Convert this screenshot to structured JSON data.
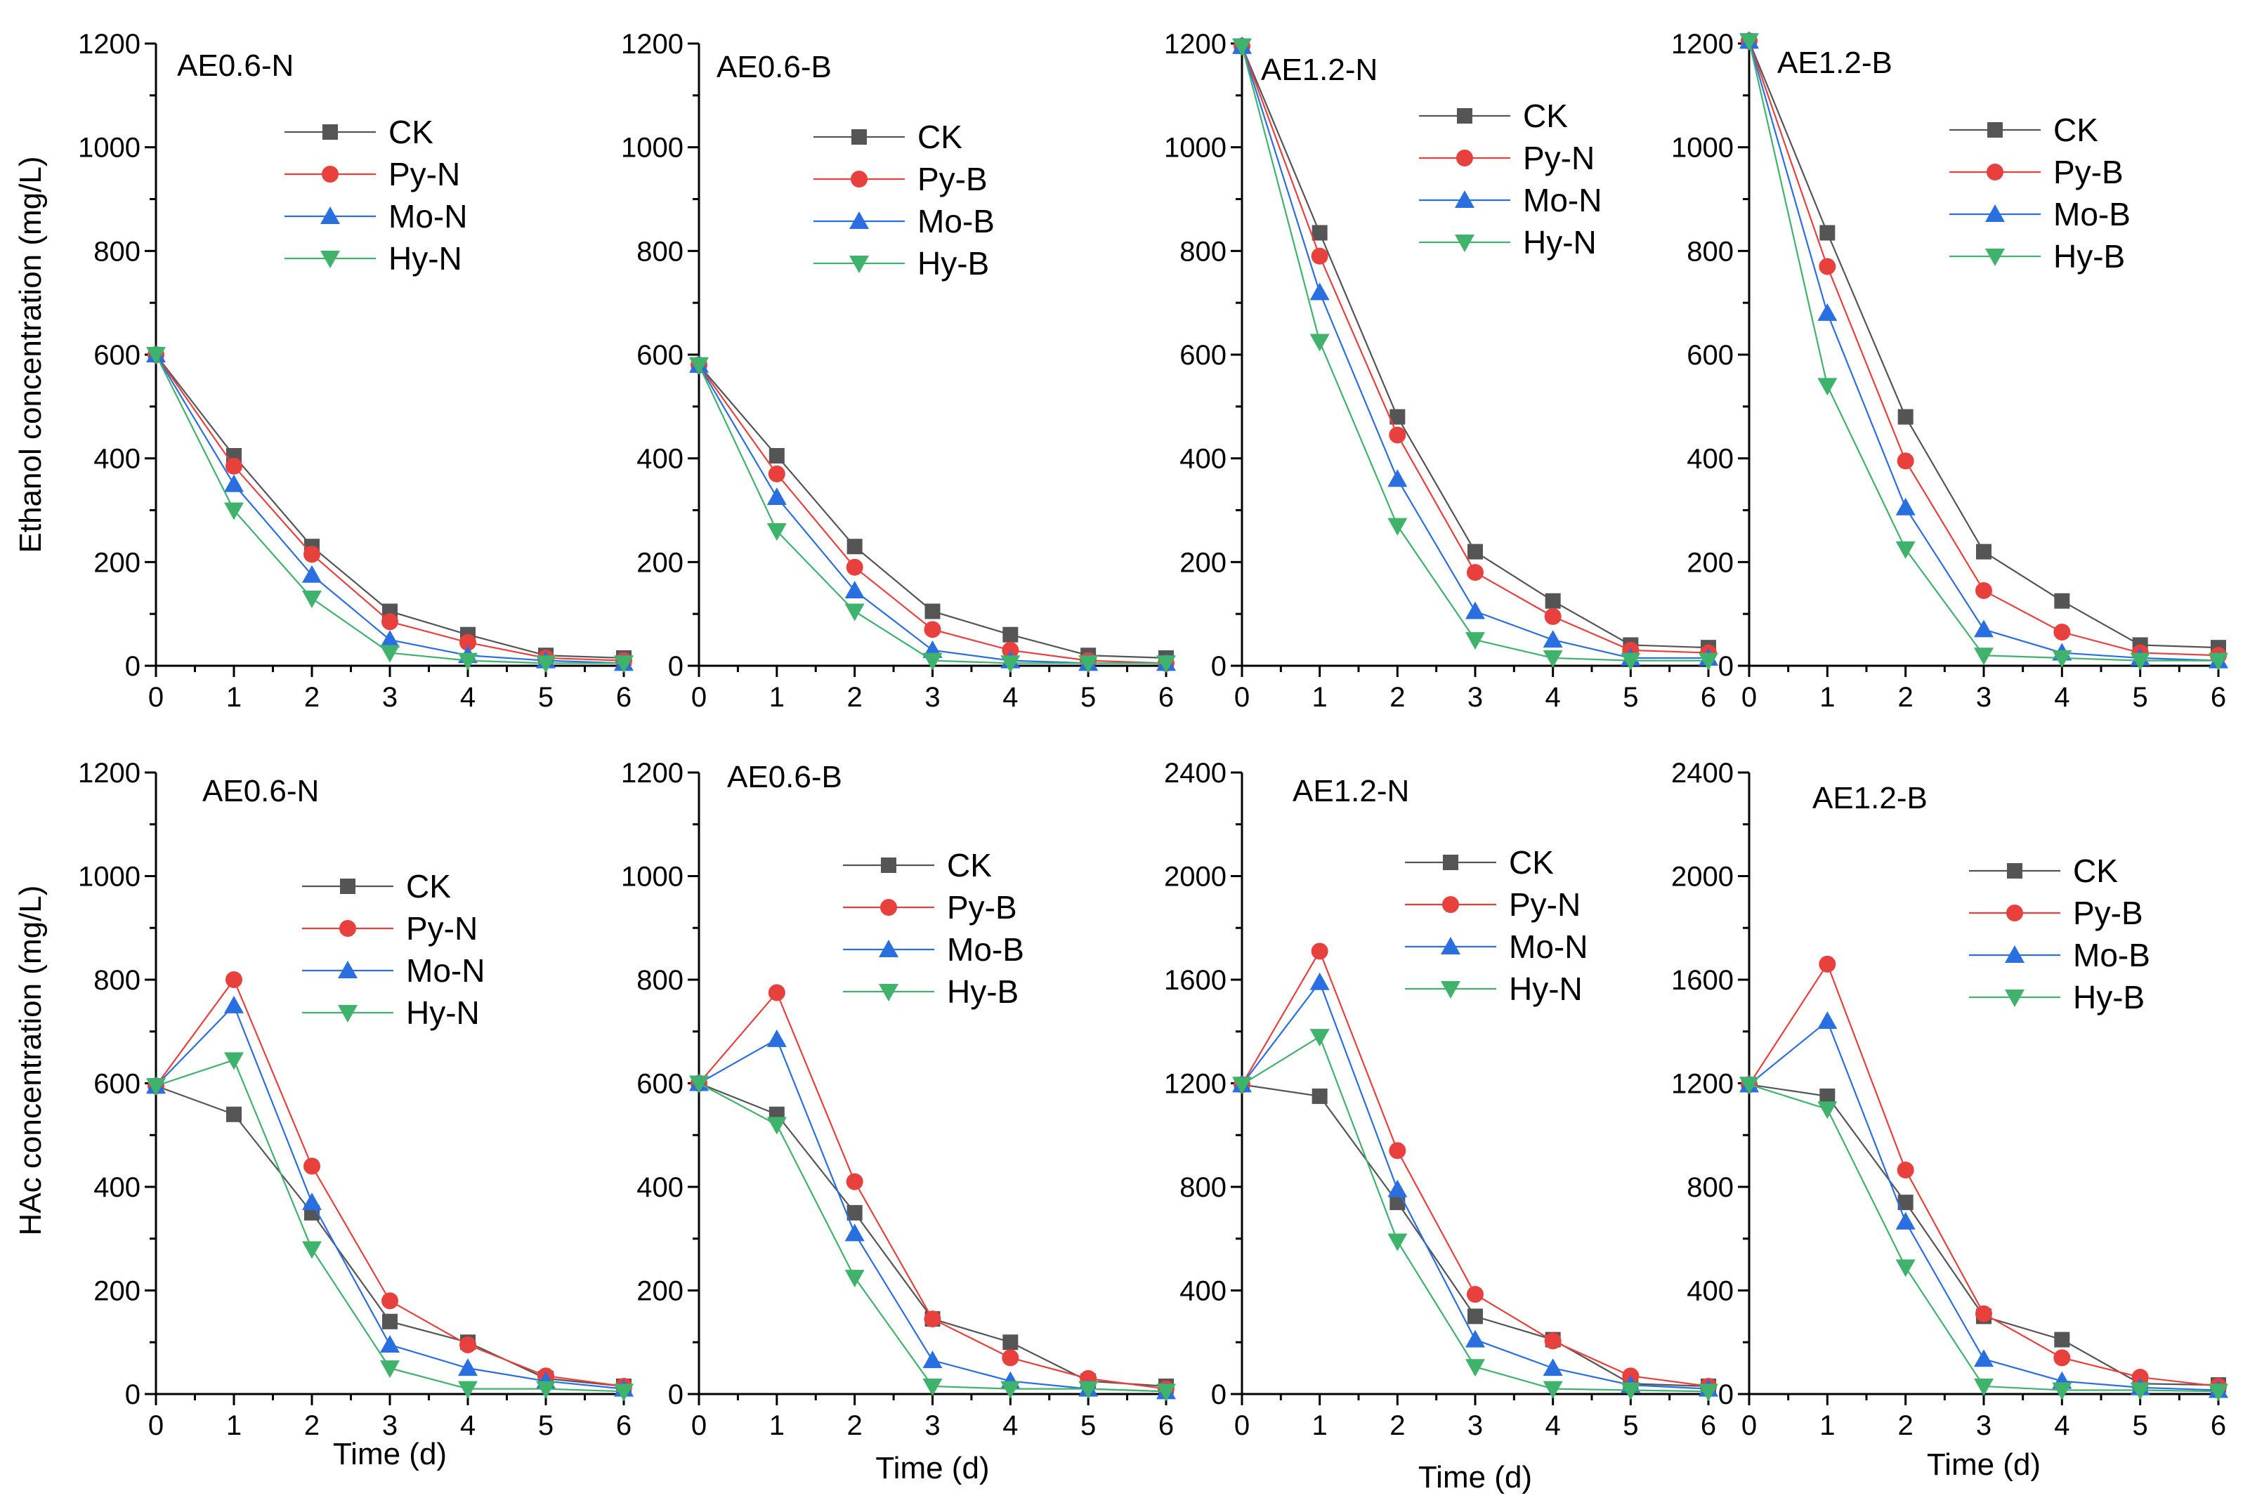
{
  "colors": {
    "CK": "#555555",
    "Py": "#e8413d",
    "Mo": "#2a6fe0",
    "Hy": "#3fb36c"
  },
  "row_labels": {
    "top_ylabel": "Ethanol concentration (mg/L)",
    "bottom_ylabel": "HAc concentration (mg/L)"
  },
  "chart_data": [
    {
      "type": "line",
      "row": 0,
      "col": 0,
      "title": "AE0.6-N",
      "xlabel": "",
      "ylabel": "Ethanol concentration (mg/L)",
      "xlim": [
        0,
        6
      ],
      "ylim": [
        0,
        1200
      ],
      "xticks": [
        "0",
        "1",
        "2",
        "3",
        "4",
        "5",
        "6"
      ],
      "yticks": [
        "0",
        "200",
        "400",
        "600",
        "800",
        "1000",
        "1200"
      ],
      "legend": "upper-right",
      "x": [
        0,
        1,
        2,
        3,
        4,
        5,
        6
      ],
      "series": [
        {
          "name": "CK",
          "marker": "square",
          "values": [
            600,
            405,
            230,
            105,
            60,
            20,
            15
          ]
        },
        {
          "name": "Py-N",
          "marker": "circle",
          "values": [
            600,
            385,
            215,
            85,
            45,
            15,
            10
          ]
        },
        {
          "name": "Mo-N",
          "marker": "triangle-up",
          "values": [
            600,
            350,
            175,
            50,
            20,
            10,
            5
          ]
        },
        {
          "name": "Hy-N",
          "marker": "triangle-down",
          "values": [
            600,
            300,
            130,
            25,
            10,
            5,
            5
          ]
        }
      ]
    },
    {
      "type": "line",
      "row": 0,
      "col": 1,
      "title": "AE0.6-B",
      "xlabel": "",
      "ylabel": "",
      "xlim": [
        0,
        6
      ],
      "ylim": [
        0,
        1200
      ],
      "xticks": [
        "0",
        "1",
        "2",
        "3",
        "4",
        "5",
        "6"
      ],
      "yticks": [
        "0",
        "200",
        "400",
        "600",
        "800",
        "1000",
        "1200"
      ],
      "legend": "upper-right",
      "x": [
        0,
        1,
        2,
        3,
        4,
        5,
        6
      ],
      "series": [
        {
          "name": "CK",
          "marker": "square",
          "values": [
            580,
            405,
            230,
            105,
            60,
            20,
            15
          ]
        },
        {
          "name": "Py-B",
          "marker": "circle",
          "values": [
            580,
            370,
            190,
            70,
            30,
            10,
            5
          ]
        },
        {
          "name": "Mo-B",
          "marker": "triangle-up",
          "values": [
            580,
            325,
            145,
            30,
            10,
            5,
            5
          ]
        },
        {
          "name": "Hy-B",
          "marker": "triangle-down",
          "values": [
            580,
            260,
            105,
            10,
            5,
            5,
            5
          ]
        }
      ]
    },
    {
      "type": "line",
      "row": 0,
      "col": 2,
      "title": "AE1.2-N",
      "xlabel": "",
      "ylabel": "",
      "xlim": [
        0,
        6
      ],
      "ylim": [
        0,
        1200
      ],
      "xticks": [
        "0",
        "1",
        "2",
        "3",
        "4",
        "5",
        "6"
      ],
      "yticks": [
        "0",
        "200",
        "400",
        "600",
        "800",
        "1000",
        "1200"
      ],
      "legend": "upper-right",
      "x": [
        0,
        1,
        2,
        3,
        4,
        5,
        6
      ],
      "series": [
        {
          "name": "CK",
          "marker": "square",
          "values": [
            1195,
            835,
            480,
            220,
            125,
            40,
            35
          ]
        },
        {
          "name": "Py-N",
          "marker": "circle",
          "values": [
            1195,
            790,
            445,
            180,
            95,
            30,
            25
          ]
        },
        {
          "name": "Mo-N",
          "marker": "triangle-up",
          "values": [
            1195,
            720,
            360,
            105,
            50,
            15,
            15
          ]
        },
        {
          "name": "Hy-N",
          "marker": "triangle-down",
          "values": [
            1195,
            625,
            270,
            50,
            15,
            10,
            10
          ]
        }
      ]
    },
    {
      "type": "line",
      "row": 0,
      "col": 3,
      "title": "AE1.2-B",
      "xlabel": "",
      "ylabel": "",
      "xlim": [
        0,
        6
      ],
      "ylim": [
        0,
        1200
      ],
      "xticks": [
        "0",
        "1",
        "2",
        "3",
        "4",
        "5",
        "6"
      ],
      "yticks": [
        "0",
        "200",
        "400",
        "600",
        "800",
        "1000",
        "1200"
      ],
      "legend": "upper-right",
      "x": [
        0,
        1,
        2,
        3,
        4,
        5,
        6
      ],
      "series": [
        {
          "name": "CK",
          "marker": "square",
          "values": [
            1205,
            835,
            480,
            220,
            125,
            40,
            35
          ]
        },
        {
          "name": "Py-B",
          "marker": "circle",
          "values": [
            1205,
            770,
            395,
            145,
            65,
            25,
            20
          ]
        },
        {
          "name": "Mo-B",
          "marker": "triangle-up",
          "values": [
            1205,
            680,
            305,
            70,
            25,
            15,
            10
          ]
        },
        {
          "name": "Hy-B",
          "marker": "triangle-down",
          "values": [
            1205,
            540,
            225,
            20,
            15,
            10,
            10
          ]
        }
      ]
    },
    {
      "type": "line",
      "row": 1,
      "col": 0,
      "title": "AE0.6-N",
      "xlabel": "Time (d)",
      "ylabel": "HAc concentration (mg/L)",
      "xlim": [
        0,
        6
      ],
      "ylim": [
        0,
        1200
      ],
      "xticks": [
        "0",
        "1",
        "2",
        "3",
        "4",
        "5",
        "6"
      ],
      "yticks": [
        "0",
        "200",
        "400",
        "600",
        "800",
        "1000",
        "1200"
      ],
      "legend": "upper-right",
      "x": [
        0,
        1,
        2,
        3,
        4,
        5,
        6
      ],
      "series": [
        {
          "name": "CK",
          "marker": "square",
          "values": [
            595,
            540,
            350,
            140,
            100,
            30,
            15
          ]
        },
        {
          "name": "Py-N",
          "marker": "circle",
          "values": [
            595,
            800,
            440,
            180,
            95,
            35,
            15
          ]
        },
        {
          "name": "Mo-N",
          "marker": "triangle-up",
          "values": [
            595,
            750,
            370,
            95,
            50,
            25,
            10
          ]
        },
        {
          "name": "Hy-N",
          "marker": "triangle-down",
          "values": [
            595,
            645,
            280,
            50,
            10,
            10,
            5
          ]
        }
      ]
    },
    {
      "type": "line",
      "row": 1,
      "col": 1,
      "title": "AE0.6-B",
      "xlabel": "Time (d)",
      "ylabel": "",
      "xlim": [
        0,
        6
      ],
      "ylim": [
        0,
        1200
      ],
      "xticks": [
        "0",
        "1",
        "2",
        "3",
        "4",
        "5",
        "6"
      ],
      "yticks": [
        "0",
        "200",
        "400",
        "600",
        "800",
        "1000",
        "1200"
      ],
      "legend": "upper-right",
      "x": [
        0,
        1,
        2,
        3,
        4,
        5,
        6
      ],
      "series": [
        {
          "name": "CK",
          "marker": "square",
          "values": [
            600,
            540,
            350,
            145,
            100,
            25,
            15
          ]
        },
        {
          "name": "Py-B",
          "marker": "circle",
          "values": [
            600,
            775,
            410,
            145,
            70,
            30,
            10
          ]
        },
        {
          "name": "Mo-B",
          "marker": "triangle-up",
          "values": [
            600,
            685,
            310,
            65,
            25,
            10,
            5
          ]
        },
        {
          "name": "Hy-B",
          "marker": "triangle-down",
          "values": [
            600,
            520,
            225,
            15,
            10,
            10,
            5
          ]
        }
      ]
    },
    {
      "type": "line",
      "row": 1,
      "col": 2,
      "title": "AE1.2-N",
      "xlabel": "Time (d)",
      "ylabel": "",
      "xlim": [
        0,
        6
      ],
      "ylim": [
        0,
        2400
      ],
      "xticks": [
        "0",
        "1",
        "2",
        "3",
        "4",
        "5",
        "6"
      ],
      "yticks": [
        "0",
        "400",
        "800",
        "1200",
        "1600",
        "2000",
        "2400"
      ],
      "legend": "upper-right",
      "x": [
        0,
        1,
        2,
        3,
        4,
        5,
        6
      ],
      "series": [
        {
          "name": "CK",
          "marker": "square",
          "values": [
            1195,
            1150,
            740,
            300,
            210,
            40,
            30
          ]
        },
        {
          "name": "Py-N",
          "marker": "circle",
          "values": [
            1195,
            1710,
            940,
            385,
            205,
            70,
            30
          ]
        },
        {
          "name": "Mo-N",
          "marker": "triangle-up",
          "values": [
            1195,
            1590,
            790,
            210,
            100,
            35,
            20
          ]
        },
        {
          "name": "Hy-N",
          "marker": "triangle-down",
          "values": [
            1195,
            1380,
            590,
            105,
            20,
            15,
            10
          ]
        }
      ]
    },
    {
      "type": "line",
      "row": 1,
      "col": 3,
      "title": "AE1.2-B",
      "xlabel": "Time (d)",
      "ylabel": "",
      "xlim": [
        0,
        6
      ],
      "ylim": [
        0,
        2400
      ],
      "xticks": [
        "0",
        "1",
        "2",
        "3",
        "4",
        "5",
        "6"
      ],
      "yticks": [
        "0",
        "400",
        "800",
        "1200",
        "1600",
        "2000",
        "2400"
      ],
      "legend": "upper-right",
      "x": [
        0,
        1,
        2,
        3,
        4,
        5,
        6
      ],
      "series": [
        {
          "name": "CK",
          "marker": "square",
          "values": [
            1195,
            1150,
            740,
            300,
            210,
            40,
            35
          ]
        },
        {
          "name": "Py-B",
          "marker": "circle",
          "values": [
            1195,
            1660,
            865,
            310,
            140,
            65,
            30
          ]
        },
        {
          "name": "Mo-B",
          "marker": "triangle-up",
          "values": [
            1195,
            1440,
            665,
            135,
            50,
            25,
            15
          ]
        },
        {
          "name": "Hy-B",
          "marker": "triangle-down",
          "values": [
            1195,
            1100,
            490,
            30,
            15,
            15,
            10
          ]
        }
      ]
    }
  ]
}
